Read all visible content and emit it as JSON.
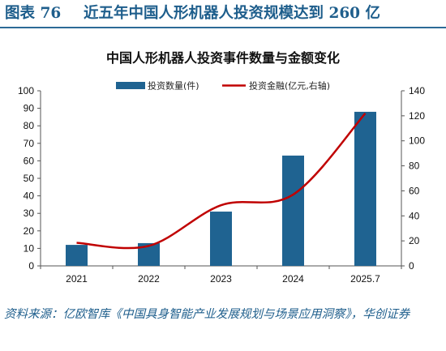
{
  "header": {
    "figure_label": "图表 76",
    "title": "近五年中国人形机器人投资规模达到 260 亿"
  },
  "source_note": "资料来源：亿欧智库《中国具身智能产业发展规划与场景应用洞察》，华创证券",
  "chart_data": {
    "type": "bar",
    "title": "中国人形机器人投资事件数量与金额变化",
    "categories": [
      "2021",
      "2022",
      "2023",
      "2024",
      "2025.7"
    ],
    "series": [
      {
        "name": "投资数量(件)",
        "type": "bar",
        "axis": "left",
        "color": "#1f6391",
        "values": [
          12,
          13,
          31,
          63,
          88
        ]
      },
      {
        "name": "投资金融(亿元,右轴)",
        "type": "line",
        "axis": "right",
        "color": "#c00000",
        "values": [
          18.5,
          16,
          48.5,
          57,
          122
        ]
      }
    ],
    "y_left": {
      "min": 0,
      "max": 100,
      "step": 10
    },
    "y_right": {
      "min": 0,
      "max": 140,
      "step": 20
    },
    "grid": false,
    "legend_position": "top-center"
  }
}
